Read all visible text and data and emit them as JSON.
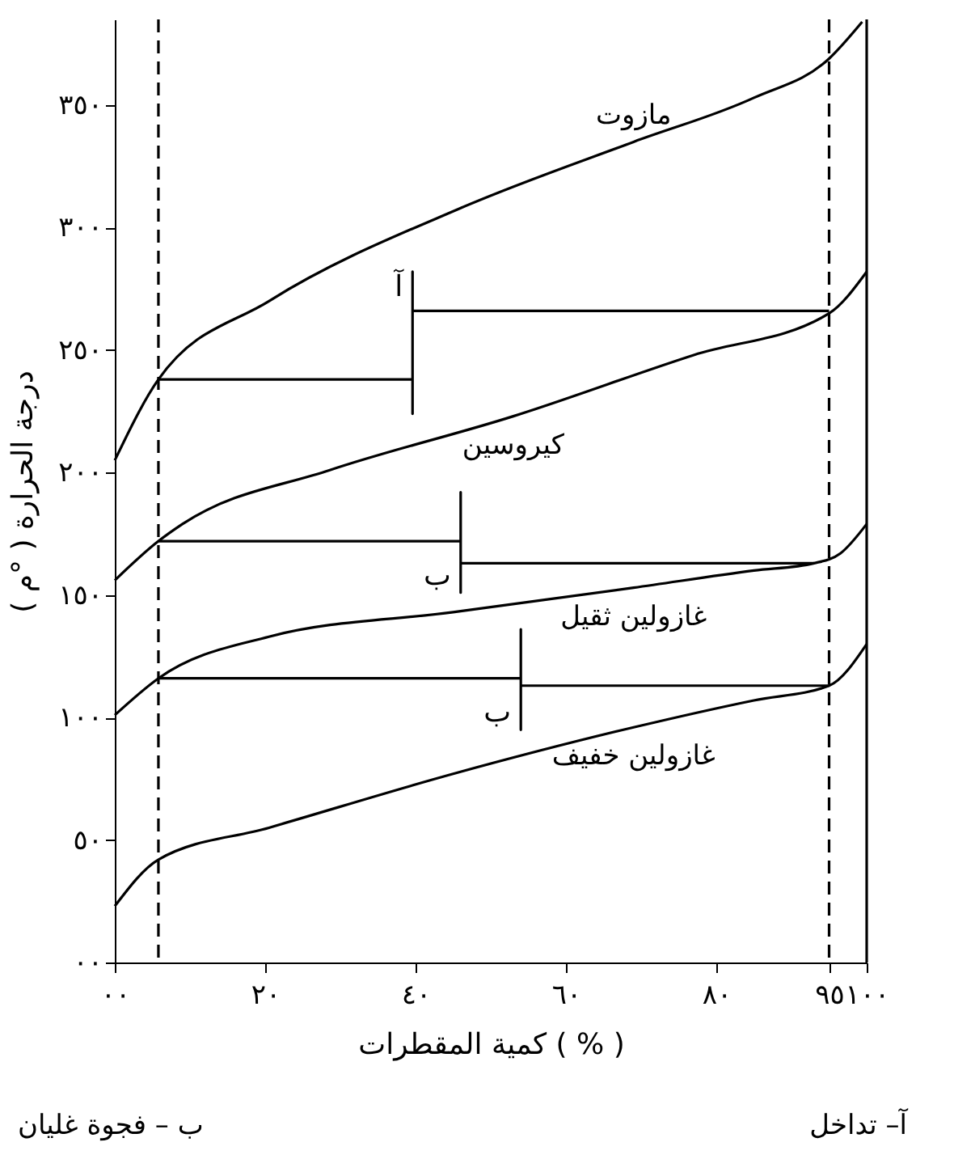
{
  "chart_data": {
    "type": "line",
    "xlabel": "كمية المقطرات ( % )",
    "ylabel": "درجة الحرارة ( °م )",
    "xlim": [
      0,
      100
    ],
    "ylim": [
      0,
      385
    ],
    "xticks": [
      {
        "value": 0,
        "label": "٠٠"
      },
      {
        "value": 20,
        "label": "٢٠"
      },
      {
        "value": 40,
        "label": "٤٠"
      },
      {
        "value": 60,
        "label": "٦٠"
      },
      {
        "value": 80,
        "label": "٨٠"
      },
      {
        "value": 95,
        "label": "٩٥"
      },
      {
        "value": 100,
        "label": "١٠٠"
      }
    ],
    "yticks": [
      {
        "value": 0,
        "label": "٠٠"
      },
      {
        "value": 50,
        "label": "٥٠"
      },
      {
        "value": 100,
        "label": "١٠٠"
      },
      {
        "value": 150,
        "label": "١٥٠"
      },
      {
        "value": 200,
        "label": "٢٠٠"
      },
      {
        "value": 250,
        "label": "٢٥٠"
      },
      {
        "value": 300,
        "label": "٣٠٠"
      },
      {
        "value": 350,
        "label": "٣٥٠"
      }
    ],
    "series": [
      {
        "name": "مازوت",
        "color": "#000000",
        "x": [
          0,
          5.8,
          20.5,
          46,
          69,
          85,
          95,
          99.4
        ],
        "values": [
          205,
          238,
          270,
          308,
          335,
          353,
          369,
          384
        ]
      },
      {
        "name": "كيروسين",
        "color": "#000000",
        "x": [
          0,
          5.8,
          9,
          28.6,
          53,
          77,
          95,
          100
        ],
        "values": [
          156,
          172,
          179,
          201,
          223,
          248,
          265,
          282
        ]
      },
      {
        "name": "غازولين ثقيل",
        "color": "#000000",
        "x": [
          0,
          5.8,
          20.5,
          45,
          69,
          85,
          93,
          96.5,
          100
        ],
        "values": [
          101,
          116,
          133,
          143,
          153,
          160,
          163,
          167,
          179
        ]
      },
      {
        "name": "غازولين خفيف",
        "color": "#000000",
        "x": [
          0,
          5.8,
          20.5,
          45,
          69,
          85,
          95,
          100
        ],
        "values": [
          23,
          42,
          55,
          77,
          96,
          107,
          113,
          130
        ]
      },
      {
        "color": "#000000",
        "x": [
          5.8,
          39.6,
          39.6,
          39.6,
          39.6,
          95
        ],
        "values": [
          238,
          238,
          224,
          282,
          266,
          266
        ]
      },
      {
        "color": "#000000",
        "x": [
          5.8,
          46,
          46,
          46,
          46,
          93
        ],
        "values": [
          172,
          172,
          151,
          192,
          163,
          163
        ]
      },
      {
        "color": "#000000",
        "x": [
          5.8,
          54,
          54,
          54,
          54,
          95
        ],
        "values": [
          116,
          116,
          95,
          136,
          113,
          113
        ]
      }
    ],
    "ref_lines": [
      {
        "axis": "x",
        "value": 5.8,
        "line_style": "dashed"
      },
      {
        "axis": "x",
        "value": 95,
        "line_style": "dashed"
      },
      {
        "axis": "x",
        "value": 100,
        "line_style": "solid"
      }
    ],
    "annotations": [
      "آ",
      "ب",
      "ب",
      "آ– تداخل",
      "ب – فجوة غليان"
    ],
    "grid": false,
    "legend": false,
    "marker": "none",
    "line_style": "solid"
  }
}
